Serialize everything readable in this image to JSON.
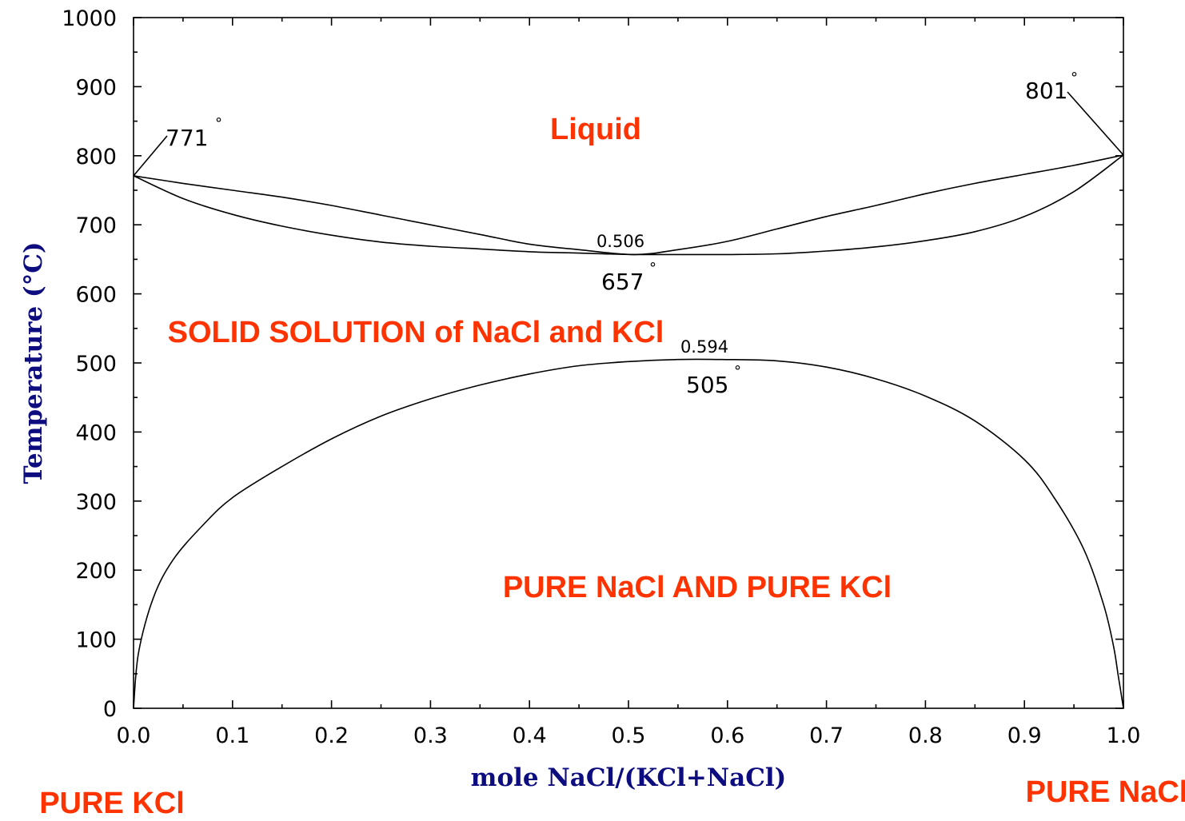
{
  "colors": {
    "region_text": "#ff3300",
    "axis_title": "#0d0d80",
    "curves": "#000000"
  },
  "chart_data": {
    "type": "line",
    "title": "",
    "xlabel": "mole NaCl/(KCl+NaCl)",
    "ylabel": "Temperature (°C)",
    "xlim": [
      0.0,
      1.0
    ],
    "ylim": [
      0,
      1000
    ],
    "x_ticks": [
      "0.0",
      "0.1",
      "0.2",
      "0.3",
      "0.4",
      "0.5",
      "0.6",
      "0.7",
      "0.8",
      "0.9",
      "1.0"
    ],
    "y_ticks": [
      "0",
      "100",
      "200",
      "300",
      "400",
      "500",
      "600",
      "700",
      "800",
      "900",
      "1000"
    ],
    "grid": false,
    "series": [
      {
        "role": "liquidus",
        "x": [
          0.0,
          0.05,
          0.1,
          0.15,
          0.2,
          0.25,
          0.3,
          0.35,
          0.4,
          0.45,
          0.506,
          0.55,
          0.6,
          0.65,
          0.7,
          0.75,
          0.8,
          0.85,
          0.9,
          0.95,
          1.0
        ],
        "y": [
          771,
          760,
          750,
          740,
          728,
          714,
          700,
          686,
          672,
          664,
          657,
          664,
          676,
          694,
          712,
          728,
          745,
          760,
          773,
          786,
          801
        ]
      },
      {
        "role": "solidus",
        "x": [
          0.0,
          0.05,
          0.1,
          0.15,
          0.2,
          0.25,
          0.3,
          0.35,
          0.4,
          0.45,
          0.506,
          0.55,
          0.6,
          0.65,
          0.7,
          0.75,
          0.8,
          0.85,
          0.9,
          0.95,
          1.0
        ],
        "y": [
          771,
          738,
          715,
          698,
          685,
          675,
          669,
          665,
          661,
          659,
          657,
          657,
          657,
          658,
          662,
          668,
          677,
          690,
          712,
          748,
          801
        ]
      },
      {
        "role": "solvus",
        "x": [
          0.0,
          0.005,
          0.02,
          0.04,
          0.07,
          0.1,
          0.15,
          0.2,
          0.25,
          0.3,
          0.35,
          0.4,
          0.45,
          0.5,
          0.55,
          0.594,
          0.65,
          0.7,
          0.75,
          0.8,
          0.85,
          0.9,
          0.93,
          0.96,
          0.98,
          0.99,
          0.995,
          1.0
        ],
        "y": [
          0,
          80,
          160,
          215,
          265,
          305,
          350,
          390,
          423,
          448,
          468,
          484,
          496,
          502,
          505,
          505,
          503,
          494,
          477,
          452,
          416,
          360,
          305,
          230,
          150,
          90,
          45,
          0
        ]
      }
    ],
    "annotations": [
      {
        "text": "771",
        "degree": "°",
        "x": 0.0,
        "y": 771
      },
      {
        "text": "801",
        "degree": "°",
        "x": 1.0,
        "y": 801
      },
      {
        "text": "0.506",
        "x": 0.506,
        "y": 657
      },
      {
        "text": "657",
        "degree": "°",
        "x": 0.506,
        "y": 657
      },
      {
        "text": "0.594",
        "x": 0.594,
        "y": 505
      },
      {
        "text": "505",
        "degree": "°",
        "x": 0.594,
        "y": 505
      }
    ],
    "regions": {
      "liquid": "Liquid",
      "solid_solution": "SOLID SOLUTION of NaCl and KCl",
      "pure_both": "PURE NaCl AND PURE KCl"
    },
    "end_labels": {
      "left": "PURE KCl",
      "right": "PURE NaCl"
    }
  }
}
